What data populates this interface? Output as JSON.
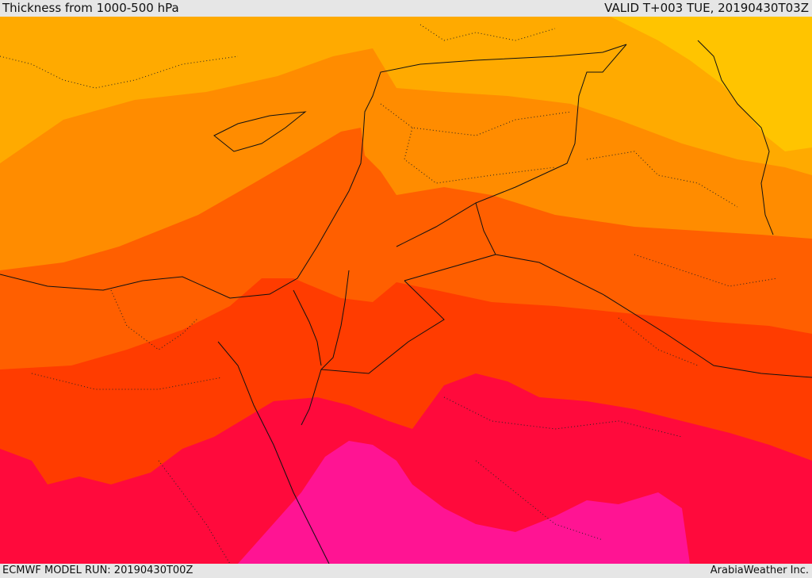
{
  "header": {
    "title": "Thickness from 1000-500 hPa",
    "valid": "VALID T+003 TUE, 20190430T03Z"
  },
  "footer": {
    "model_run": "ECMWF MODEL RUN: 20190430T00Z",
    "credit": "ArabiaWeather Inc."
  },
  "colors": {
    "band1": "#ffc400",
    "band2": "#ffaa00",
    "band3": "#ff8c00",
    "band4": "#ff5f00",
    "band5": "#ff3c00",
    "band6": "#ff0a3c",
    "band7": "#ff1493",
    "border": "#111111"
  }
}
